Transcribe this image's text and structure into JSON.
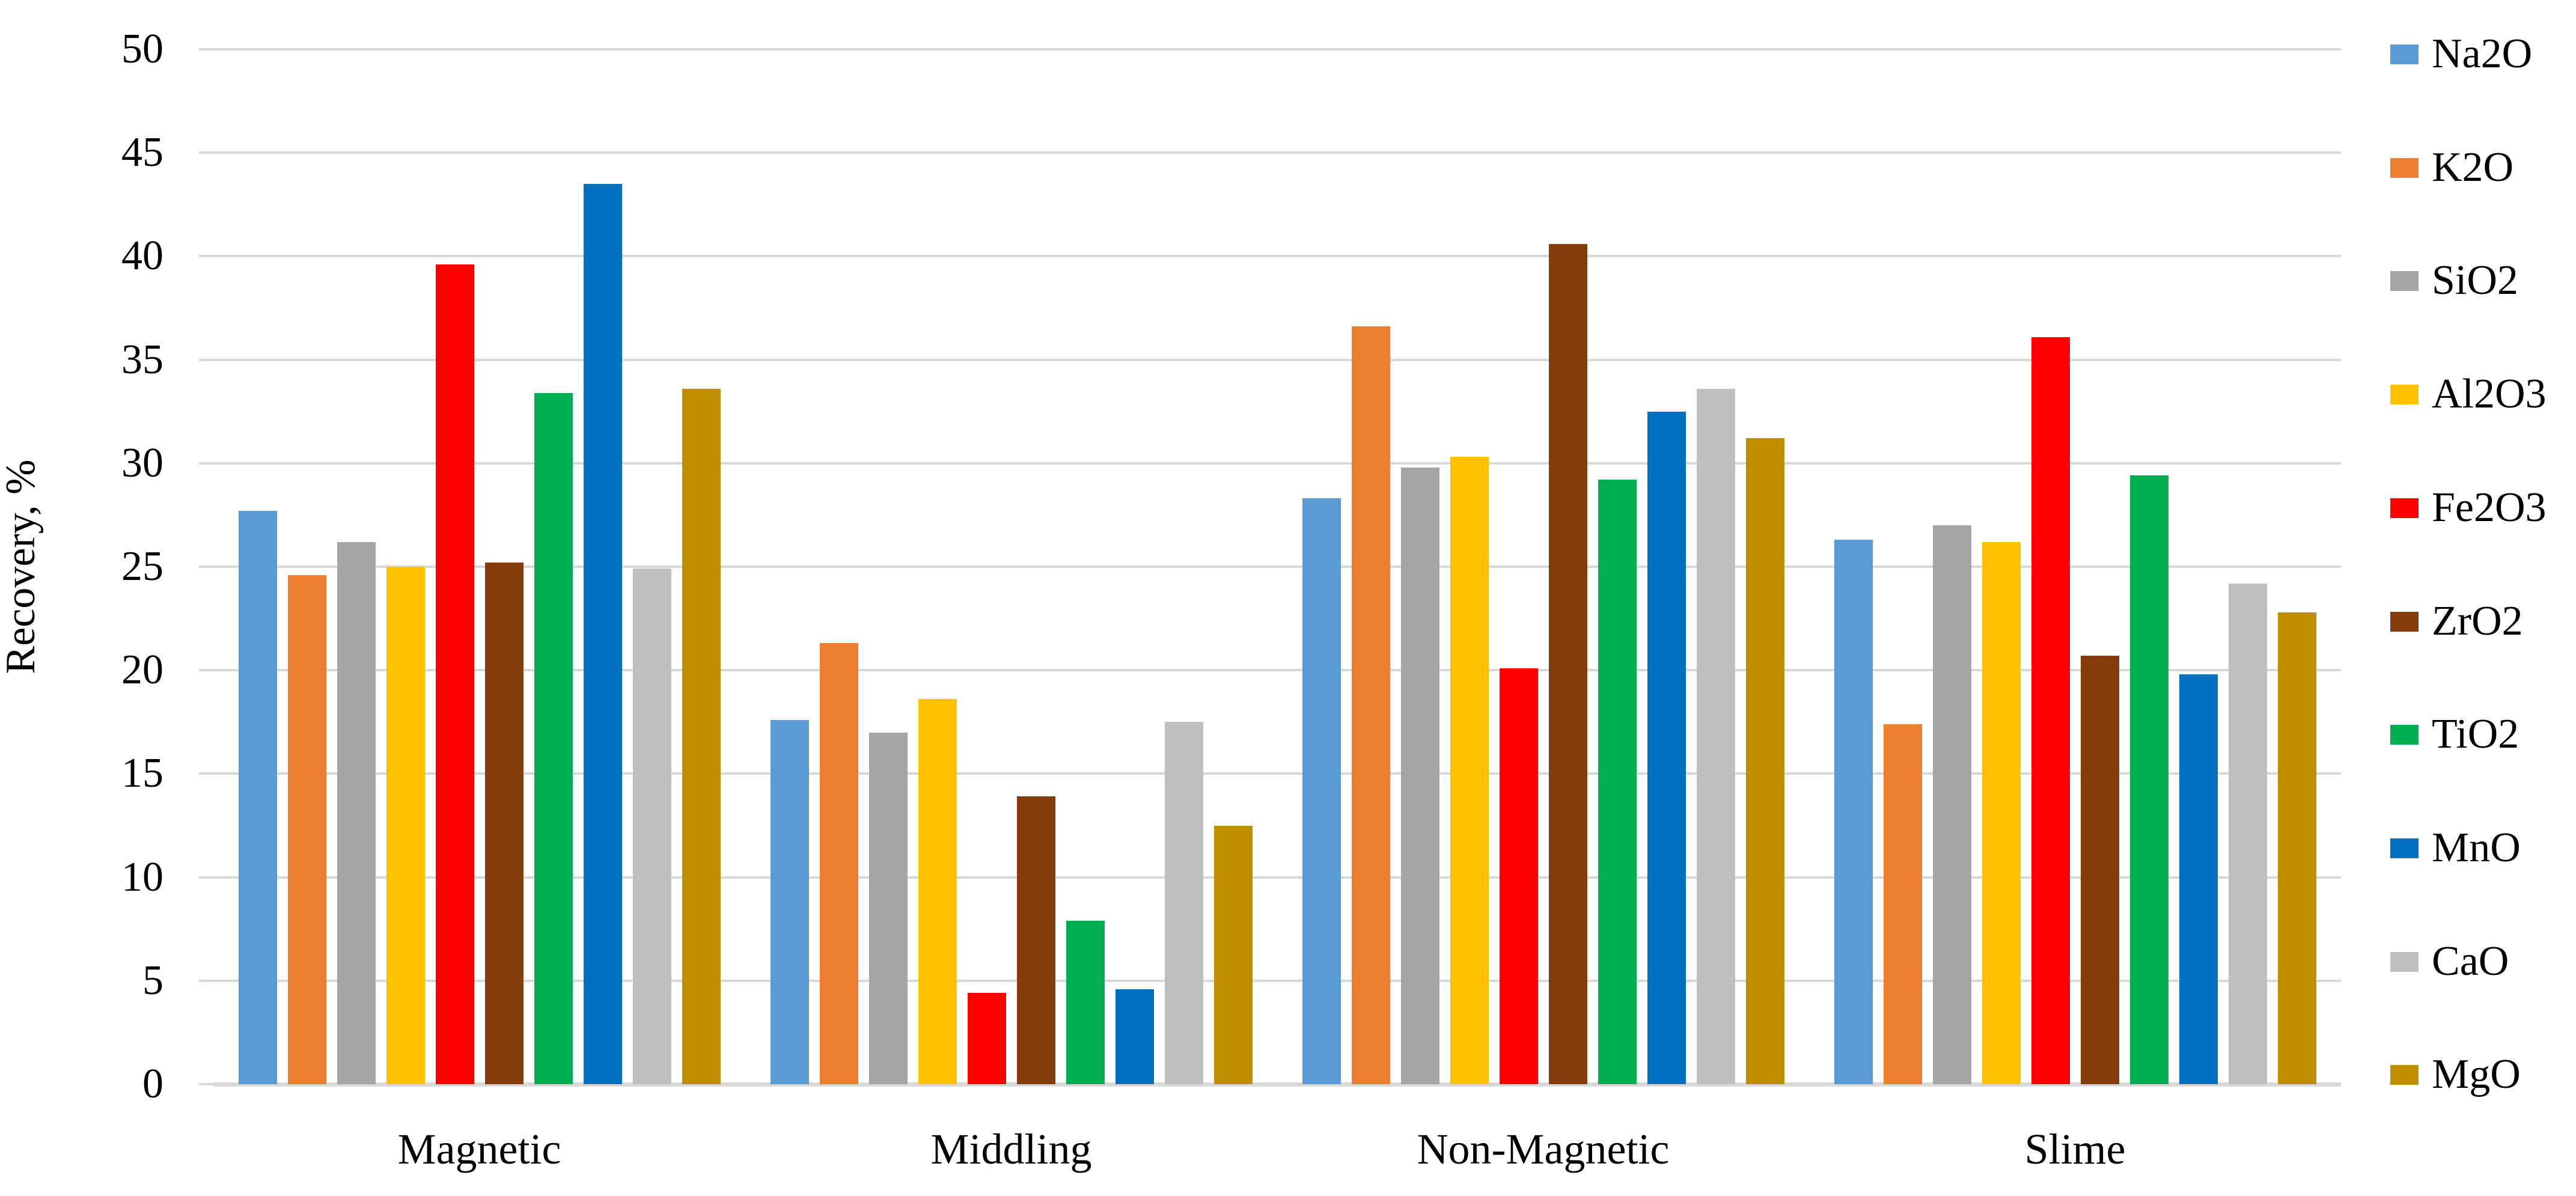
{
  "chart_data": {
    "type": "bar",
    "title": "",
    "categories": [
      "Magnetic",
      "Middling",
      "Non-Magnetic",
      "Slime"
    ],
    "series": [
      {
        "name": "Na2O",
        "color": "#5B9BD5",
        "values": [
          27.7,
          17.6,
          28.3,
          26.3
        ]
      },
      {
        "name": "K2O",
        "color": "#ED7D31",
        "values": [
          24.6,
          21.3,
          36.6,
          17.4
        ]
      },
      {
        "name": "SiO2",
        "color": "#A5A5A5",
        "values": [
          26.2,
          17.0,
          29.8,
          27.0
        ]
      },
      {
        "name": "Al2O3",
        "color": "#FFC000",
        "values": [
          25.0,
          18.6,
          30.3,
          26.2
        ]
      },
      {
        "name": "Fe2O3",
        "color": "#FF0000",
        "values": [
          39.6,
          4.4,
          20.1,
          36.1
        ]
      },
      {
        "name": "ZrO2",
        "color": "#843C0C",
        "values": [
          25.2,
          13.9,
          40.6,
          20.7
        ]
      },
      {
        "name": "TiO2",
        "color": "#00B050",
        "values": [
          33.4,
          7.9,
          29.2,
          29.4
        ]
      },
      {
        "name": "MnO",
        "color": "#0070C0",
        "values": [
          43.5,
          4.6,
          32.5,
          19.8
        ]
      },
      {
        "name": "CaO",
        "color": "#BFBFBF",
        "values": [
          24.9,
          17.5,
          33.6,
          24.2
        ]
      },
      {
        "name": "MgO",
        "color": "#BF8F00",
        "values": [
          33.6,
          12.5,
          31.2,
          22.8
        ]
      }
    ],
    "xlabel": "",
    "ylabel": "Recovery, %",
    "ylim": [
      0,
      50
    ],
    "ytick_step": 5,
    "ytick_labels": [
      "0",
      "5",
      "10",
      "15",
      "20",
      "25",
      "30",
      "35",
      "40",
      "45",
      "50"
    ],
    "grid": true,
    "legend_position": "right",
    "gridline_color": "#D9D9D9",
    "axis_text_color": "#000000"
  }
}
